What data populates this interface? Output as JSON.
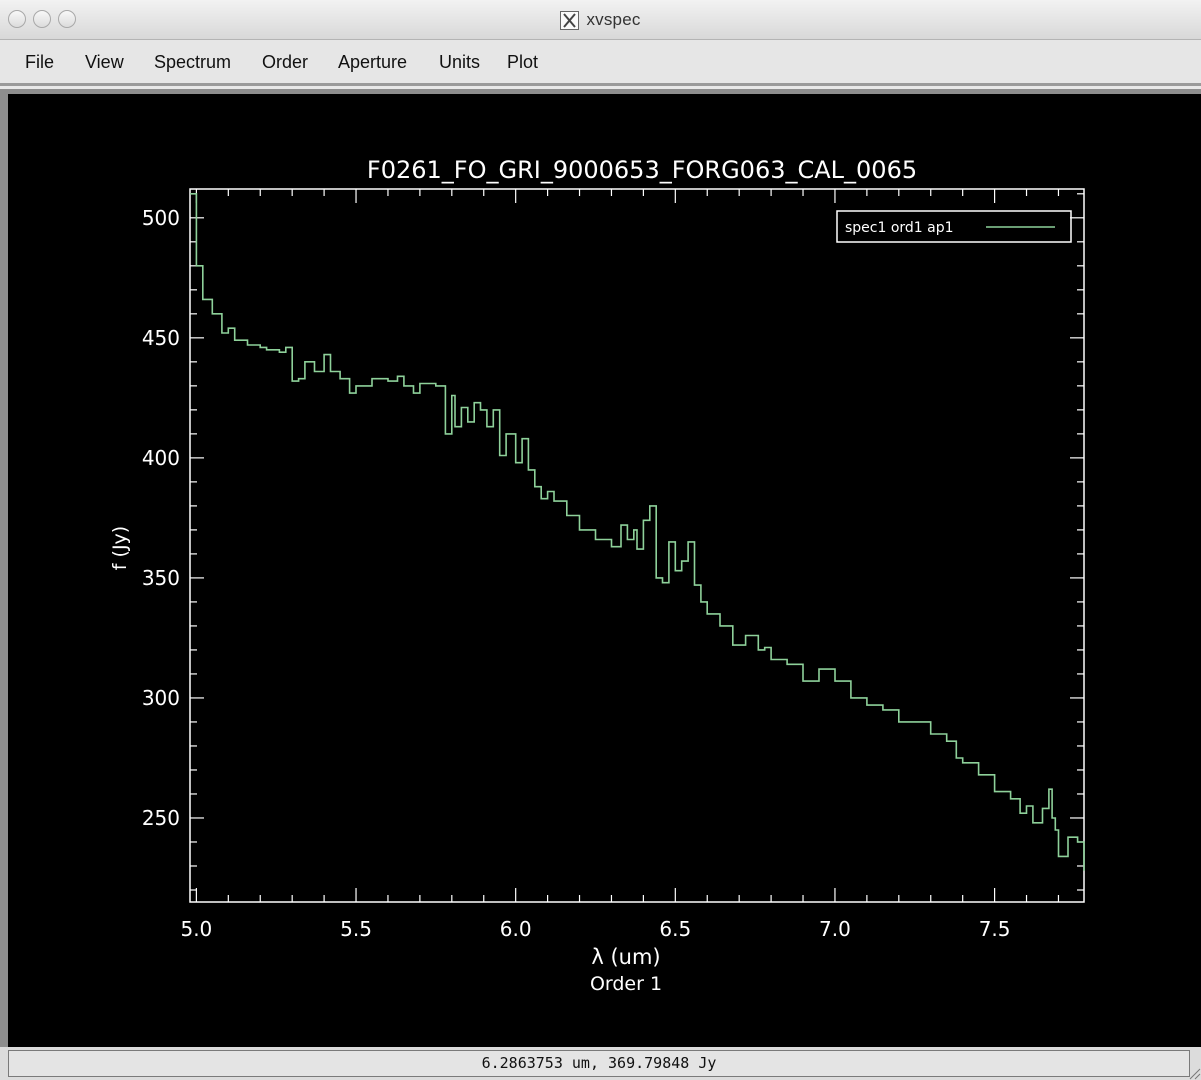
{
  "window": {
    "title": "xvspec",
    "app_icon": "x11-icon",
    "controls": [
      "close-button",
      "minimize-button",
      "zoom-button"
    ]
  },
  "menu": {
    "items": [
      "File",
      "View",
      "Spectrum",
      "Order",
      "Aperture",
      "Units",
      "Plot"
    ]
  },
  "status": {
    "cursor_readout": "6.2863753 um, 369.79848 Jy"
  },
  "colors": {
    "background": "#000000",
    "axes": "#ffffff",
    "spectrum": "#8ed19a"
  },
  "chart_data": {
    "type": "line",
    "title": "F0261_FO_GRI_9000653_FORG063_CAL_0065",
    "xlabel": "λ (um)",
    "xlabel_sub": "Order 1",
    "ylabel": "f (Jy)",
    "xlim": [
      4.98,
      7.78
    ],
    "ylim": [
      215,
      512
    ],
    "xticks": [
      5.0,
      5.5,
      6.0,
      6.5,
      7.0,
      7.5
    ],
    "xtick_labels": [
      "5.0",
      "5.5",
      "6.0",
      "6.5",
      "7.0",
      "7.5"
    ],
    "yticks": [
      250,
      300,
      350,
      400,
      450,
      500
    ],
    "ytick_labels": [
      "250",
      "300",
      "350",
      "400",
      "450",
      "500"
    ],
    "grid": false,
    "legend_position": "top-right",
    "series": [
      {
        "name": "spec1 ord1 ap1",
        "step": true,
        "x": [
          4.98,
          5.0,
          5.02,
          5.05,
          5.08,
          5.1,
          5.12,
          5.16,
          5.2,
          5.22,
          5.26,
          5.28,
          5.3,
          5.32,
          5.34,
          5.37,
          5.4,
          5.42,
          5.45,
          5.48,
          5.5,
          5.55,
          5.6,
          5.63,
          5.65,
          5.68,
          5.7,
          5.75,
          5.78,
          5.8,
          5.81,
          5.83,
          5.85,
          5.87,
          5.89,
          5.91,
          5.93,
          5.95,
          5.97,
          6.0,
          6.02,
          6.04,
          6.06,
          6.08,
          6.1,
          6.12,
          6.16,
          6.2,
          6.25,
          6.3,
          6.33,
          6.35,
          6.37,
          6.38,
          6.4,
          6.42,
          6.44,
          6.46,
          6.48,
          6.5,
          6.52,
          6.54,
          6.56,
          6.58,
          6.6,
          6.64,
          6.68,
          6.72,
          6.76,
          6.78,
          6.8,
          6.85,
          6.9,
          6.95,
          7.0,
          7.05,
          7.1,
          7.15,
          7.2,
          7.25,
          7.3,
          7.35,
          7.38,
          7.4,
          7.45,
          7.5,
          7.55,
          7.58,
          7.6,
          7.62,
          7.65,
          7.67,
          7.68,
          7.69,
          7.7,
          7.73,
          7.76,
          7.78
        ],
        "y": [
          510,
          480,
          466,
          460,
          452,
          454,
          449,
          447,
          446,
          445,
          444,
          446,
          432,
          433,
          440,
          436,
          443,
          436,
          433,
          427,
          430,
          433,
          432,
          434,
          430,
          427,
          431,
          430,
          410,
          426,
          413,
          421,
          415,
          423,
          420,
          413,
          420,
          401,
          410,
          398,
          408,
          395,
          388,
          383,
          386,
          382,
          376,
          370,
          366,
          363,
          372,
          366,
          370,
          362,
          374,
          380,
          350,
          348,
          365,
          353,
          357,
          365,
          347,
          340,
          335,
          330,
          322,
          326,
          320,
          321,
          316,
          314,
          307,
          312,
          307,
          300,
          297,
          295,
          290,
          290,
          285,
          282,
          275,
          273,
          268,
          261,
          258,
          252,
          255,
          248,
          254,
          262,
          250,
          245,
          234,
          242,
          240,
          228
        ]
      }
    ]
  }
}
